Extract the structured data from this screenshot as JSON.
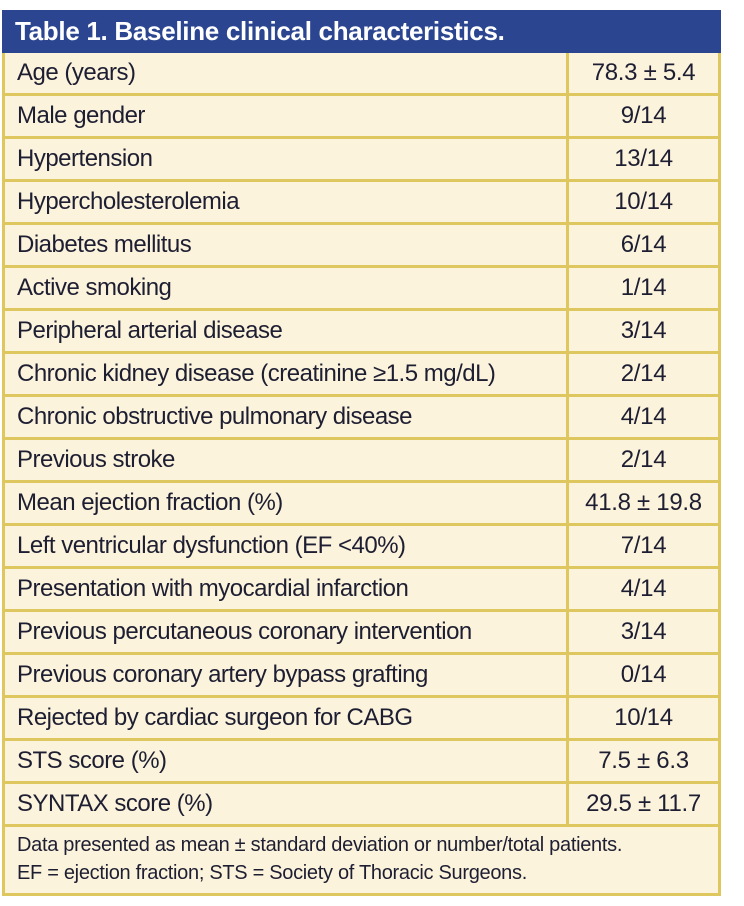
{
  "colors": {
    "header_bg": "#2B4590",
    "header_text": "#FFFFFF",
    "row_bg": "#FBF3DC",
    "border": "#DDC75E",
    "text": "#1E1E32"
  },
  "table": {
    "title": "Table 1. Baseline clinical characteristics.",
    "rows": [
      {
        "label": "Age (years)",
        "value": "78.3 ± 5.4"
      },
      {
        "label": "Male gender",
        "value": "9/14"
      },
      {
        "label": "Hypertension",
        "value": "13/14"
      },
      {
        "label": "Hypercholesterolemia",
        "value": "10/14"
      },
      {
        "label": "Diabetes mellitus",
        "value": "6/14"
      },
      {
        "label": "Active smoking",
        "value": "1/14"
      },
      {
        "label": "Peripheral arterial disease",
        "value": "3/14"
      },
      {
        "label": "Chronic kidney disease (creatinine ≥1.5 mg/dL)",
        "value": "2/14"
      },
      {
        "label": "Chronic obstructive pulmonary disease",
        "value": "4/14"
      },
      {
        "label": "Previous stroke",
        "value": "2/14"
      },
      {
        "label": "Mean ejection fraction (%)",
        "value": "41.8 ± 19.8"
      },
      {
        "label": "Left ventricular dysfunction (EF <40%)",
        "value": "7/14"
      },
      {
        "label": "Presentation with myocardial infarction",
        "value": "4/14"
      },
      {
        "label": "Previous percutaneous coronary intervention",
        "value": "3/14"
      },
      {
        "label": "Previous coronary artery bypass grafting",
        "value": "0/14"
      },
      {
        "label": "Rejected by cardiac surgeon for CABG",
        "value": "10/14"
      },
      {
        "label": "STS score (%)",
        "value": "7.5 ± 6.3"
      },
      {
        "label": "SYNTAX score (%)",
        "value": "29.5 ± 11.7"
      }
    ],
    "footnotes": [
      "Data presented as mean ± standard deviation or number/total patients.",
      "EF = ejection fraction; STS = Society of Thoracic Surgeons."
    ]
  }
}
